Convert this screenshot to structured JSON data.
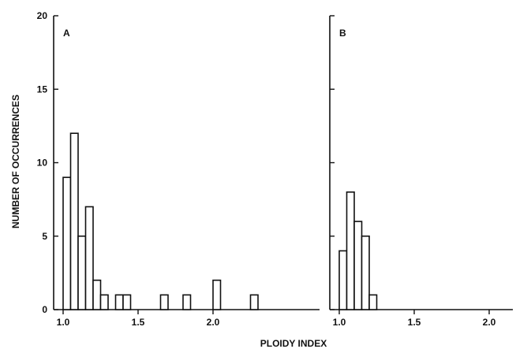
{
  "figure": {
    "shared_xlabel": "PLOIDY INDEX",
    "shared_ylabel": "NUMBER OF OCCURRENCES"
  },
  "chart_data": [
    {
      "type": "bar",
      "panel_label": "A",
      "xlabel": "PLOIDY INDEX",
      "ylabel": "NUMBER OF OCCURRENCES",
      "xlim": [
        0.98,
        2.55
      ],
      "ylim": [
        0,
        20
      ],
      "xticks": [
        "1.0",
        "1.5",
        "2.0"
      ],
      "yticks": [
        "0",
        "5",
        "10",
        "15",
        "20"
      ],
      "bin_width": 0.05,
      "x": [
        1.0,
        1.05,
        1.1,
        1.15,
        1.2,
        1.25,
        1.35,
        1.4,
        1.65,
        1.8,
        2.0,
        2.25
      ],
      "values": [
        9,
        12,
        5,
        7,
        2,
        1,
        1,
        1,
        1,
        1,
        2,
        1
      ]
    },
    {
      "type": "bar",
      "panel_label": "B",
      "xlabel": "PLOIDY INDEX",
      "ylim": [
        0,
        20
      ],
      "xlim": [
        0.98,
        2.2
      ],
      "xticks": [
        "1.0",
        "1.5",
        "2.0"
      ],
      "bin_width": 0.05,
      "x": [
        1.0,
        1.05,
        1.1,
        1.15,
        1.2
      ],
      "values": [
        4,
        8,
        6,
        5,
        1
      ]
    }
  ]
}
